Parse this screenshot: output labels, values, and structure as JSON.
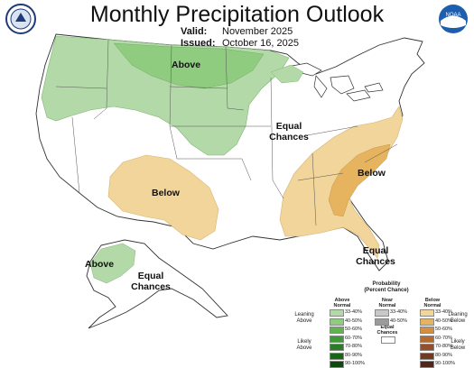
{
  "header": {
    "title": "Monthly Precipitation Outlook",
    "valid_label": "Valid:",
    "valid_value": "November 2025",
    "issued_label": "Issued:",
    "issued_value": "October 16, 2025"
  },
  "logos": {
    "left": "Department of Commerce seal",
    "right": "NOAA",
    "right_text": "NOAA"
  },
  "map_labels": {
    "above_north": "Above",
    "below_sw": "Below",
    "equal_center_1": "Equal",
    "equal_center_2": "Chances",
    "below_se": "Below",
    "equal_fl_1": "Equal",
    "equal_fl_2": "Chances",
    "above_ak": "Above",
    "equal_ak_1": "Equal",
    "equal_ak_2": "Chances"
  },
  "legend": {
    "title_1": "Probability",
    "title_2": "(Percent Chance)",
    "above_head_1": "Above",
    "above_head_2": "Normal",
    "near_head_1": "Near",
    "near_head_2": "Normal",
    "below_head_1": "Below",
    "below_head_2": "Normal",
    "leaning_above_1": "Leaning",
    "leaning_above_2": "Above",
    "likely_above_1": "Likely",
    "likely_above_2": "Above",
    "leaning_below_1": "Leaning",
    "leaning_below_2": "Below",
    "likely_below_1": "Likely",
    "likely_below_2": "Below",
    "equal_1": "Equal",
    "equal_2": "Chances",
    "above_bins": [
      "33-40%",
      "40-50%",
      "50-60%",
      "60-70%",
      "70-80%",
      "80-90%",
      "90-100%"
    ],
    "near_bins": [
      "33-40%",
      "40-50%"
    ],
    "below_bins": [
      "33-40%",
      "40-50%",
      "50-60%",
      "60-70%",
      "70-80%",
      "80-90%",
      "90-100%"
    ],
    "above_colors": [
      "#b3d9a8",
      "#8fcc7f",
      "#5fb450",
      "#3e9a36",
      "#2a7d25",
      "#1a6418",
      "#0e4a0e"
    ],
    "near_colors": [
      "#c8c8c8",
      "#9a9a9a"
    ],
    "below_colors": [
      "#f2d59a",
      "#e6b35f",
      "#d38e3e",
      "#b56a2e",
      "#94502a",
      "#703a22",
      "#50261a"
    ]
  }
}
